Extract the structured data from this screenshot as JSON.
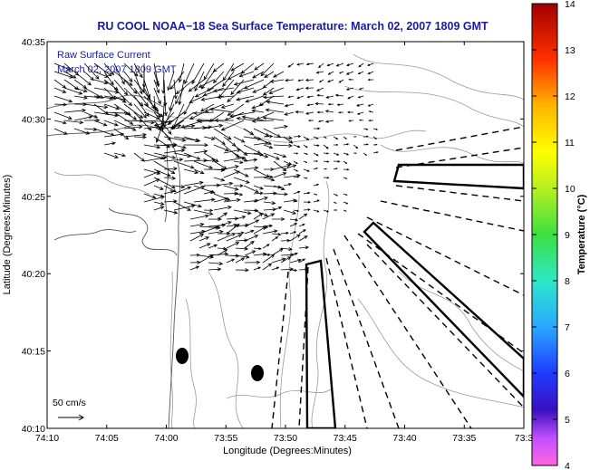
{
  "chart_data": {
    "type": "quiver",
    "title": "RU COOL  NOAA−18  Sea Surface Temperature:  March 02, 2007 1809 GMT",
    "annotation": [
      "Raw Surface Current",
      "March 02, 2007 1809 GMT"
    ],
    "xlabel": "Longitude (Degrees:Minutes)",
    "ylabel": "Latitude (Degrees:Minutes)",
    "x_ticks": [
      "74:10",
      "74:05",
      "74:00",
      "73:55",
      "73:50",
      "73:45",
      "73:40",
      "73:35",
      "73:3"
    ],
    "y_ticks": [
      "40:35",
      "40:30",
      "40:25",
      "40:20",
      "40:15",
      "40:10"
    ],
    "xlim_min_west": [
      -254.333,
      -213
    ],
    "ylim_min": [
      2410,
      2435
    ],
    "scale_label": "50 cm/s",
    "colorbar": {
      "label": "Temperature (°C)",
      "ticks": [
        "4",
        "5",
        "6",
        "7",
        "8",
        "9",
        "10",
        "11",
        "12",
        "13",
        "14"
      ],
      "range": [
        4,
        14
      ]
    },
    "colors": {
      "title": "#1a1aa6",
      "arrows": "#000000",
      "contours": "#9a9a9a"
    }
  }
}
